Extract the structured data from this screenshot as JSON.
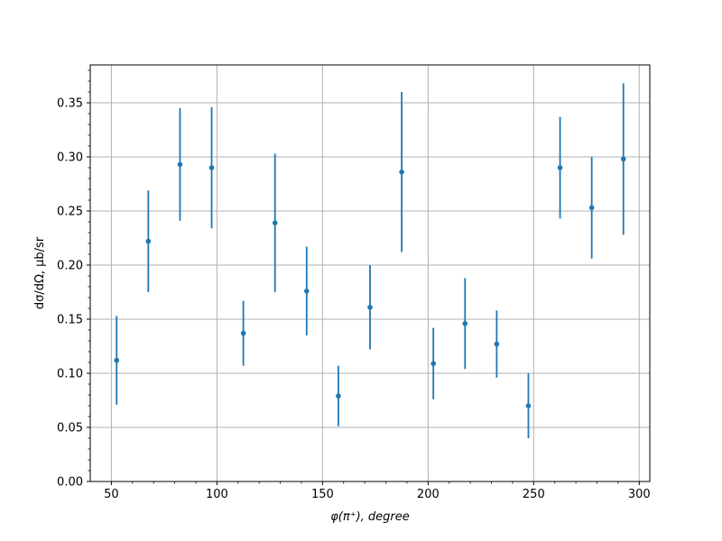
{
  "chart_data": {
    "type": "scatter",
    "title": "",
    "xlabel": "φ(π⁺), degree",
    "ylabel": "dσ/dΩ, μb/sr",
    "xlim": [
      40,
      305
    ],
    "ylim": [
      0,
      0.385
    ],
    "xticks": [
      50,
      100,
      150,
      200,
      250,
      300
    ],
    "xtick_labels": [
      "50",
      "100",
      "150",
      "200",
      "250",
      "300"
    ],
    "yticks": [
      0,
      0.05,
      0.1,
      0.15,
      0.2,
      0.25,
      0.3,
      0.35
    ],
    "ytick_labels": [
      "0.00",
      "0.05",
      "0.10",
      "0.15",
      "0.20",
      "0.25",
      "0.30",
      "0.35"
    ],
    "grid": true,
    "color": "#1f77b4",
    "points": [
      {
        "x": 52.5,
        "y": 0.112,
        "err": 0.041
      },
      {
        "x": 67.5,
        "y": 0.222,
        "err": 0.047
      },
      {
        "x": 82.5,
        "y": 0.293,
        "err": 0.052
      },
      {
        "x": 97.5,
        "y": 0.29,
        "err": 0.056
      },
      {
        "x": 112.5,
        "y": 0.137,
        "err": 0.03
      },
      {
        "x": 127.5,
        "y": 0.239,
        "err": 0.064
      },
      {
        "x": 142.5,
        "y": 0.176,
        "err": 0.041
      },
      {
        "x": 157.5,
        "y": 0.079,
        "err": 0.028
      },
      {
        "x": 172.5,
        "y": 0.161,
        "err": 0.039
      },
      {
        "x": 187.5,
        "y": 0.286,
        "err": 0.074
      },
      {
        "x": 202.5,
        "y": 0.109,
        "err": 0.033
      },
      {
        "x": 217.5,
        "y": 0.146,
        "err": 0.042
      },
      {
        "x": 232.5,
        "y": 0.127,
        "err": 0.031
      },
      {
        "x": 247.5,
        "y": 0.07,
        "err": 0.03
      },
      {
        "x": 262.5,
        "y": 0.29,
        "err": 0.047
      },
      {
        "x": 277.5,
        "y": 0.253,
        "err": 0.047
      },
      {
        "x": 292.5,
        "y": 0.298,
        "err": 0.07
      }
    ]
  }
}
